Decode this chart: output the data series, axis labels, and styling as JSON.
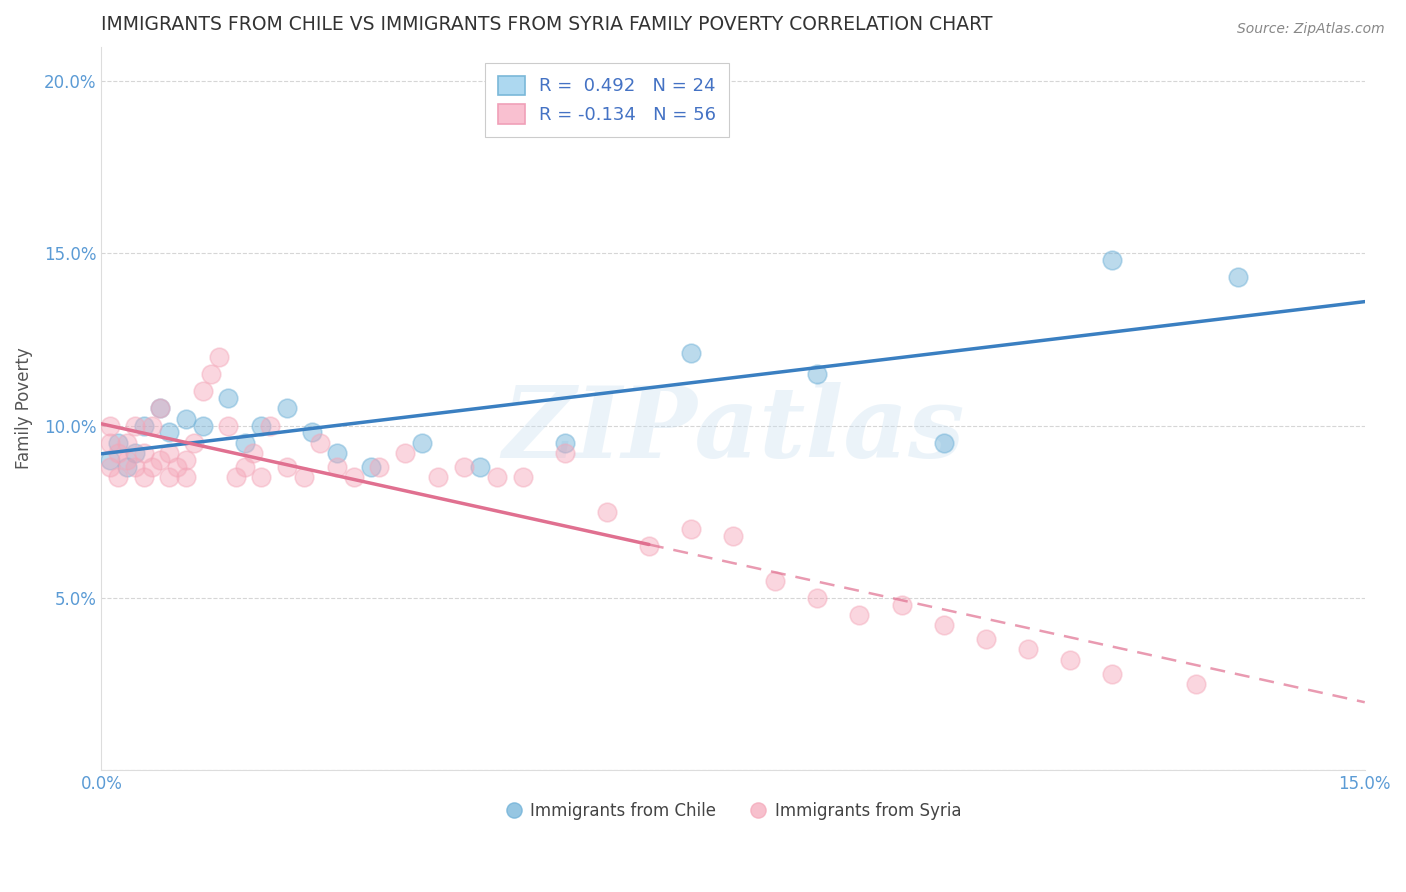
{
  "title": "IMMIGRANTS FROM CHILE VS IMMIGRANTS FROM SYRIA FAMILY POVERTY CORRELATION CHART",
  "source_text": "Source: ZipAtlas.com",
  "ylabel": "Family Poverty",
  "xmin": 0.0,
  "xmax": 0.15,
  "ymin": 0.0,
  "ymax": 0.21,
  "ytick_vals": [
    0.0,
    0.05,
    0.1,
    0.15,
    0.2
  ],
  "ytick_labels": [
    "",
    "5.0%",
    "10.0%",
    "15.0%",
    "20.0%"
  ],
  "xtick_vals": [
    0.0,
    0.03,
    0.06,
    0.09,
    0.12,
    0.15
  ],
  "xtick_labels": [
    "0.0%",
    "",
    "",
    "",
    "",
    "15.0%"
  ],
  "chile_color": "#6aaed6",
  "syria_color": "#f4a6b8",
  "chile_line_color": "#3a7fc1",
  "syria_line_color": "#e07090",
  "chile_R": 0.492,
  "chile_N": 24,
  "syria_R": -0.134,
  "syria_N": 56,
  "watermark": "ZIPatlas",
  "chile_x": [
    0.001,
    0.002,
    0.003,
    0.004,
    0.005,
    0.007,
    0.008,
    0.01,
    0.012,
    0.015,
    0.017,
    0.019,
    0.022,
    0.025,
    0.028,
    0.032,
    0.038,
    0.045,
    0.055,
    0.07,
    0.085,
    0.1,
    0.12,
    0.135
  ],
  "chile_y": [
    0.09,
    0.095,
    0.088,
    0.092,
    0.1,
    0.105,
    0.098,
    0.102,
    0.1,
    0.108,
    0.095,
    0.1,
    0.105,
    0.098,
    0.092,
    0.088,
    0.095,
    0.088,
    0.095,
    0.121,
    0.115,
    0.095,
    0.148,
    0.143
  ],
  "syria_x": [
    0.001,
    0.001,
    0.001,
    0.002,
    0.002,
    0.003,
    0.003,
    0.004,
    0.004,
    0.005,
    0.005,
    0.006,
    0.006,
    0.007,
    0.007,
    0.008,
    0.008,
    0.009,
    0.01,
    0.01,
    0.011,
    0.012,
    0.013,
    0.014,
    0.015,
    0.016,
    0.017,
    0.018,
    0.019,
    0.02,
    0.022,
    0.024,
    0.026,
    0.028,
    0.03,
    0.033,
    0.036,
    0.04,
    0.043,
    0.047,
    0.05,
    0.055,
    0.06,
    0.065,
    0.07,
    0.075,
    0.08,
    0.085,
    0.09,
    0.095,
    0.1,
    0.105,
    0.11,
    0.115,
    0.12,
    0.13
  ],
  "syria_y": [
    0.095,
    0.1,
    0.088,
    0.092,
    0.085,
    0.09,
    0.095,
    0.088,
    0.1,
    0.085,
    0.092,
    0.1,
    0.088,
    0.105,
    0.09,
    0.085,
    0.092,
    0.088,
    0.085,
    0.09,
    0.095,
    0.11,
    0.115,
    0.12,
    0.1,
    0.085,
    0.088,
    0.092,
    0.085,
    0.1,
    0.088,
    0.085,
    0.095,
    0.088,
    0.085,
    0.088,
    0.092,
    0.085,
    0.088,
    0.085,
    0.085,
    0.092,
    0.075,
    0.065,
    0.07,
    0.068,
    0.055,
    0.05,
    0.045,
    0.048,
    0.042,
    0.038,
    0.035,
    0.032,
    0.028,
    0.025
  ]
}
